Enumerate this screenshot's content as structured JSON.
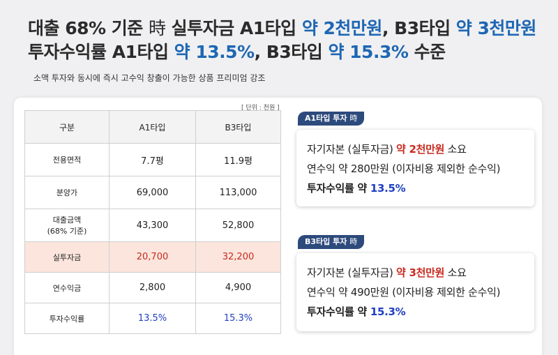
{
  "headline": {
    "line1": {
      "p1": "대출 68% 기준 ",
      "ji": "時",
      "p2": " 실투자금 A1타입 ",
      "blue1": "약 2천만원",
      "p3": ", B3타입 ",
      "blue2": "약 3천만원"
    },
    "line2": {
      "p1": "투자수익률 A1타입 ",
      "blue1": "약 13.5%",
      "p2": ", B3타입 ",
      "blue2": "약 15.3%",
      "p3": " 수준"
    }
  },
  "subtitle": "소액 투자와 동시에 즉시 고수익 창출이 가능한 상품 프리미엄 강조",
  "table": {
    "unit": "[ 단위 : 천원 ]",
    "headers": [
      "구분",
      "A1타입",
      "B3타입"
    ],
    "rows": [
      {
        "label": "전용면적",
        "a1": "7.7평",
        "b3": "11.9평"
      },
      {
        "label": "분양가",
        "a1": "69,000",
        "b3": "113,000"
      },
      {
        "label": "대출금액",
        "label2": "(68% 기준)",
        "a1": "43,300",
        "b3": "52,800"
      },
      {
        "label": "실투자금",
        "a1": "20,700",
        "b3": "32,200"
      },
      {
        "label": "연수익금",
        "a1": "2,800",
        "b3": "4,900"
      },
      {
        "label": "투자수익률",
        "a1": "13.5%",
        "b3": "15.3%"
      }
    ]
  },
  "cards": [
    {
      "tag": "A1타입 투자 ",
      "tag_ji": "時",
      "l1_a": "자기자본 (실투자금) ",
      "l1_red": "약 2천만원",
      "l1_b": " 소요",
      "l2": "연수익 약 280만원 (이자비용 제외한 순수익)",
      "l3_a": "투자수익률 약 ",
      "l3_blue": "13.5%"
    },
    {
      "tag": "B3타입 투자 ",
      "tag_ji": "時",
      "l1_a": "자기자본 (실투자금) ",
      "l1_red": "약 3천만원",
      "l1_b": " 소요",
      "l2": "연수익 약 490만원 (이자비용 제외한 순수익)",
      "l3_a": "투자수익률 약 ",
      "l3_blue": "15.3%"
    }
  ],
  "colors": {
    "headline_blue": "#1e67b3",
    "highlight_red": "#c82a20",
    "rate_blue": "#1f3fc2",
    "tag_navy": "#2d4a7c",
    "highlight_row_bg": "#fbe5dc"
  }
}
